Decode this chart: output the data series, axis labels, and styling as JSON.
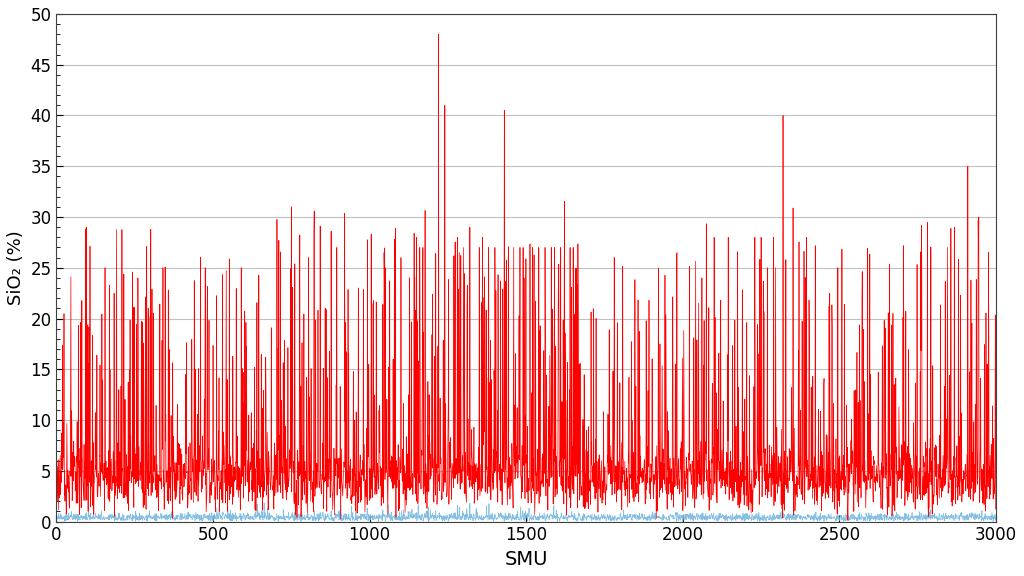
{
  "title": "",
  "xlabel": "SMU",
  "ylabel": "SiO₂ (%)",
  "xlim": [
    0,
    3000
  ],
  "ylim": [
    0,
    50
  ],
  "yticks": [
    0,
    5,
    10,
    15,
    20,
    25,
    30,
    35,
    40,
    45,
    50
  ],
  "xticks": [
    0,
    500,
    1000,
    1500,
    2000,
    2500,
    3000
  ],
  "red_color": "#FF0000",
  "blue_color": "#74B8E0",
  "background_color": "#FFFFFF",
  "grid_color": "#C0C0C0",
  "linewidth_red": 0.5,
  "linewidth_blue": 0.5,
  "xlabel_fontsize": 14,
  "ylabel_fontsize": 13,
  "tick_fontsize": 12
}
